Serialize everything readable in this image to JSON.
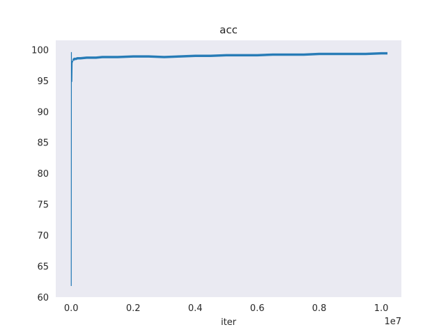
{
  "chart_data": {
    "type": "line",
    "title": "acc",
    "xlabel": "iter",
    "ylabel": "",
    "x_offset_label": "1e7",
    "xlim": [
      -0.05,
      1.065
    ],
    "ylim": [
      60,
      101.5
    ],
    "x_ticks": [
      0.0,
      0.2,
      0.4,
      0.6,
      0.8,
      1.0
    ],
    "x_tick_labels": [
      "0.0",
      "0.2",
      "0.4",
      "0.6",
      "0.8",
      "1.0"
    ],
    "y_ticks": [
      60,
      65,
      70,
      75,
      80,
      85,
      90,
      95,
      100
    ],
    "y_tick_labels": [
      "60",
      "65",
      "70",
      "75",
      "80",
      "85",
      "90",
      "95",
      "100"
    ],
    "grid": false,
    "background": "#eaeaf2",
    "series": [
      {
        "color": "#1f77b4",
        "x": [
          0.0,
          0.0005,
          0.001,
          0.0015,
          0.002,
          0.003,
          0.004,
          0.006,
          0.008,
          0.01,
          0.015,
          0.02,
          0.03,
          0.05,
          0.08,
          0.1,
          0.15,
          0.2,
          0.25,
          0.3,
          0.35,
          0.4,
          0.45,
          0.5,
          0.55,
          0.6,
          0.65,
          0.7,
          0.75,
          0.8,
          0.85,
          0.9,
          0.95,
          1.0,
          1.02
        ],
        "y": [
          61.8,
          99.6,
          95.0,
          97.5,
          94.8,
          98.2,
          98.0,
          98.3,
          98.4,
          98.5,
          98.5,
          98.6,
          98.6,
          98.7,
          98.7,
          98.8,
          98.8,
          98.9,
          98.9,
          98.8,
          98.9,
          99.0,
          99.0,
          99.1,
          99.1,
          99.1,
          99.2,
          99.2,
          99.2,
          99.3,
          99.3,
          99.3,
          99.3,
          99.4,
          99.4
        ]
      }
    ]
  }
}
